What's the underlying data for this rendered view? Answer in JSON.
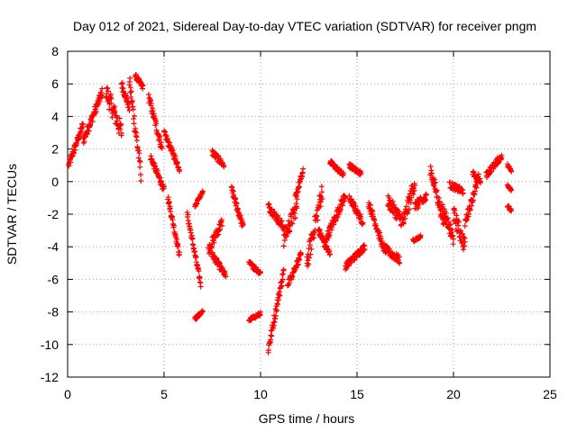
{
  "chart_data": {
    "type": "scatter",
    "title": "Day 012 of 2021, Sidereal Day-to-day VTEC variation (SDTVAR) for receiver pngm",
    "xlabel": "GPS time / hours",
    "ylabel": "SDTVAR / TECUs",
    "xlim": [
      0,
      25
    ],
    "ylim": [
      -12,
      8
    ],
    "xticks": [
      0,
      5,
      10,
      15,
      20,
      25
    ],
    "yticks": [
      -12,
      -10,
      -8,
      -6,
      -4,
      -2,
      0,
      2,
      4,
      6,
      8
    ],
    "grid": true,
    "marker": "+",
    "marker_color": "#ff0000",
    "segments": [
      {
        "x0": 0.05,
        "x1": 0.8,
        "y0": 1.0,
        "y1": 3.5,
        "spread": 0.5
      },
      {
        "x0": 0.8,
        "x1": 1.8,
        "y0": 2.5,
        "y1": 5.5,
        "spread": 0.6
      },
      {
        "x0": 2.0,
        "x1": 2.8,
        "y0": 5.5,
        "y1": 3.0,
        "spread": 1.2
      },
      {
        "x0": 2.8,
        "x1": 3.2,
        "y0": 6.0,
        "y1": 4.5,
        "spread": 0.5
      },
      {
        "x0": 3.2,
        "x1": 3.8,
        "y0": 6.2,
        "y1": 0.5,
        "spread": 1.0
      },
      {
        "x0": 3.5,
        "x1": 3.9,
        "y0": 6.5,
        "y1": 5.8,
        "spread": 0.3
      },
      {
        "x0": 4.2,
        "x1": 4.9,
        "y0": 5.2,
        "y1": 2.0,
        "spread": 0.6
      },
      {
        "x0": 4.3,
        "x1": 5.0,
        "y0": 1.5,
        "y1": -0.5,
        "spread": 0.4
      },
      {
        "x0": 5.0,
        "x1": 5.8,
        "y0": 3.0,
        "y1": 0.8,
        "spread": 0.4
      },
      {
        "x0": 5.2,
        "x1": 5.8,
        "y0": -1.0,
        "y1": -4.5,
        "spread": 0.4
      },
      {
        "x0": 6.2,
        "x1": 6.9,
        "y0": -2.0,
        "y1": -6.3,
        "spread": 0.4
      },
      {
        "x0": 6.6,
        "x1": 7.0,
        "y0": -8.4,
        "y1": -8.0,
        "spread": 0.2
      },
      {
        "x0": 6.6,
        "x1": 7.0,
        "y0": -1.5,
        "y1": -0.6,
        "spread": 0.2
      },
      {
        "x0": 7.3,
        "x1": 8.0,
        "y0": -4.2,
        "y1": -2.5,
        "spread": 0.6
      },
      {
        "x0": 7.5,
        "x1": 8.1,
        "y0": 1.8,
        "y1": 1.0,
        "spread": 0.4
      },
      {
        "x0": 7.5,
        "x1": 8.2,
        "y0": -4.5,
        "y1": -5.8,
        "spread": 0.4
      },
      {
        "x0": 8.5,
        "x1": 9.1,
        "y0": -0.5,
        "y1": -2.8,
        "spread": 0.5
      },
      {
        "x0": 9.4,
        "x1": 10.0,
        "y0": -8.5,
        "y1": -8.1,
        "spread": 0.2
      },
      {
        "x0": 9.4,
        "x1": 10.0,
        "y0": -5.0,
        "y1": -5.6,
        "spread": 0.3
      },
      {
        "x0": 10.4,
        "x1": 11.2,
        "y0": -10.3,
        "y1": -5.5,
        "spread": 0.6
      },
      {
        "x0": 10.4,
        "x1": 11.2,
        "y0": -1.5,
        "y1": -2.8,
        "spread": 0.5
      },
      {
        "x0": 11.2,
        "x1": 11.9,
        "y0": -3.5,
        "y1": -1.5,
        "spread": 1.0
      },
      {
        "x0": 11.4,
        "x1": 12.1,
        "y0": -6.3,
        "y1": -4.5,
        "spread": 0.4
      },
      {
        "x0": 11.8,
        "x1": 12.2,
        "y0": -1.0,
        "y1": 0.6,
        "spread": 0.4
      },
      {
        "x0": 12.4,
        "x1": 13.2,
        "y0": -5.0,
        "y1": -0.5,
        "spread": 1.2
      },
      {
        "x0": 13.0,
        "x1": 13.6,
        "y0": -3.0,
        "y1": -4.5,
        "spread": 0.5
      },
      {
        "x0": 13.4,
        "x1": 14.4,
        "y0": -3.5,
        "y1": -0.8,
        "spread": 0.6
      },
      {
        "x0": 13.6,
        "x1": 14.3,
        "y0": 1.2,
        "y1": 0.4,
        "spread": 0.3
      },
      {
        "x0": 14.6,
        "x1": 15.3,
        "y0": -1.0,
        "y1": -2.5,
        "spread": 0.4
      },
      {
        "x0": 14.6,
        "x1": 15.2,
        "y0": 1.0,
        "y1": 0.5,
        "spread": 0.3
      },
      {
        "x0": 14.4,
        "x1": 15.4,
        "y0": -5.2,
        "y1": -4.0,
        "spread": 0.4
      },
      {
        "x0": 15.6,
        "x1": 16.3,
        "y0": -1.3,
        "y1": -3.8,
        "spread": 0.5
      },
      {
        "x0": 16.3,
        "x1": 17.2,
        "y0": -4.0,
        "y1": -4.8,
        "spread": 0.5
      },
      {
        "x0": 16.6,
        "x1": 17.4,
        "y0": -1.2,
        "y1": -2.5,
        "spread": 0.8
      },
      {
        "x0": 17.4,
        "x1": 18.0,
        "y0": -2.5,
        "y1": 0.0,
        "spread": 1.0
      },
      {
        "x0": 18.0,
        "x1": 18.6,
        "y0": -1.5,
        "y1": -1.0,
        "spread": 0.6
      },
      {
        "x0": 17.9,
        "x1": 18.3,
        "y0": -3.6,
        "y1": -3.4,
        "spread": 0.2
      },
      {
        "x0": 18.8,
        "x1": 19.5,
        "y0": 0.8,
        "y1": -2.5,
        "spread": 0.8
      },
      {
        "x0": 19.4,
        "x1": 20.0,
        "y0": -1.5,
        "y1": -3.5,
        "spread": 0.8
      },
      {
        "x0": 19.8,
        "x1": 20.5,
        "y0": -0.2,
        "y1": -0.6,
        "spread": 0.4
      },
      {
        "x0": 20.0,
        "x1": 20.6,
        "y0": -2.0,
        "y1": -4.0,
        "spread": 1.0
      },
      {
        "x0": 20.6,
        "x1": 21.3,
        "y0": -2.5,
        "y1": 0.2,
        "spread": 0.6
      },
      {
        "x0": 21.0,
        "x1": 21.4,
        "y0": 0.5,
        "y1": 0.0,
        "spread": 0.3
      },
      {
        "x0": 21.7,
        "x1": 22.5,
        "y0": 0.4,
        "y1": 1.6,
        "spread": 0.4
      },
      {
        "x0": 22.8,
        "x1": 23.0,
        "y0": 1.0,
        "y1": 0.7,
        "spread": 0.2
      },
      {
        "x0": 22.8,
        "x1": 23.0,
        "y0": -0.2,
        "y1": -0.5,
        "spread": 0.2
      },
      {
        "x0": 22.8,
        "x1": 23.0,
        "y0": -1.5,
        "y1": -1.8,
        "spread": 0.2
      }
    ]
  }
}
